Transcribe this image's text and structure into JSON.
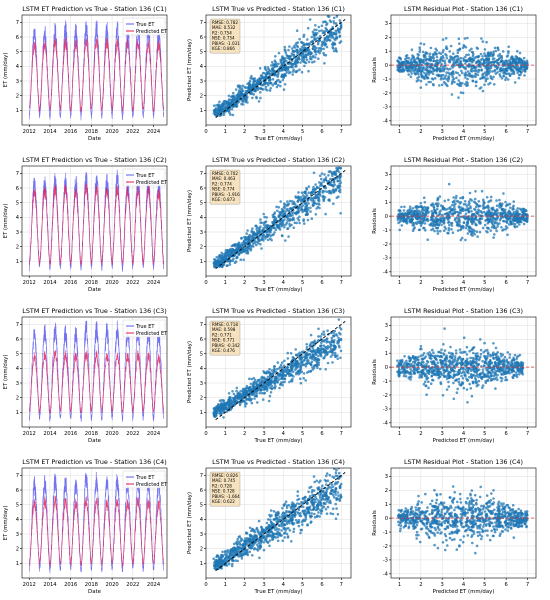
{
  "chart_data": [
    {
      "type": "line",
      "title": "LSTM ET Prediction vs True - Station 136 (C1)",
      "xlabel": "Date",
      "ylabel": "ET (mm/day)",
      "xlim": [
        2011.3,
        2025.3
      ],
      "ylim": [
        0,
        7.5
      ],
      "xticks": [
        "2012",
        "2014",
        "2016",
        "2018",
        "2020",
        "2022",
        "2024"
      ],
      "yticks": [
        "1",
        "2",
        "3",
        "4",
        "5",
        "6",
        "7"
      ],
      "legend": [
        "True ET",
        "Predicted ET"
      ],
      "legend_position": "top-right",
      "series": [
        {
          "name": "True ET",
          "summer_peak": [
            6.1,
            6.2,
            6.3,
            6.4,
            6.5,
            6.3,
            6.6,
            6.6,
            6.4,
            6.5,
            6.3,
            6.5,
            6.4,
            6.2
          ],
          "winter_trough": [
            0.6,
            0.6,
            0.5,
            0.6,
            0.6,
            0.5,
            0.6,
            0.6,
            0.6,
            0.5,
            0.6,
            0.6,
            0.6,
            0.6
          ]
        },
        {
          "name": "Predicted ET",
          "summer_peak": [
            5.3,
            5.4,
            5.5,
            5.6,
            5.6,
            5.5,
            5.7,
            5.7,
            5.6,
            5.6,
            5.5,
            5.6,
            5.5,
            5.4
          ],
          "winter_trough": [
            1.1,
            1.0,
            1.0,
            1.1,
            1.0,
            1.0,
            1.1,
            1.0,
            1.1,
            1.0,
            1.0,
            1.1,
            1.0,
            1.1
          ]
        }
      ]
    },
    {
      "type": "scatter",
      "title": "LSTM True vs Predicted - Station 136 (C1)",
      "xlabel": "True ET (mm/day)",
      "ylabel": "Predicted ET (mm/day)",
      "xlim": [
        0,
        7.5
      ],
      "ylim": [
        0,
        7.5
      ],
      "xticks": [
        "0",
        "1",
        "2",
        "3",
        "4",
        "5",
        "6",
        "7"
      ],
      "yticks": [
        "1",
        "2",
        "3",
        "4",
        "5",
        "6",
        "7"
      ],
      "stats": [
        "RMSE: 0.782",
        "MAE: 0.532",
        "R2: 0.754",
        "NSE: 0.754",
        "PBIAS: -1.031",
        "KGE: 0.866"
      ],
      "model": {
        "slope": 0.9,
        "intercept": 0.35,
        "spread": 0.55,
        "x_range": [
          0.4,
          7.0
        ]
      }
    },
    {
      "type": "scatter",
      "title": "LSTM Residual Plot - Station 136 (C1)",
      "xlabel": "Predicted ET (mm/day)",
      "ylabel": "Residuals",
      "xlim": [
        0.6,
        7.4
      ],
      "ylim": [
        -4.3,
        3.6
      ],
      "xticks": [
        "1",
        "2",
        "3",
        "4",
        "5",
        "6",
        "7"
      ],
      "yticks": [
        "-4",
        "-3",
        "-2",
        "-1",
        "0",
        "1",
        "2",
        "3"
      ],
      "model": {
        "x_range": [
          0.9,
          7.0
        ],
        "spread": 0.55
      }
    },
    {
      "type": "line",
      "title": "LSTM ET Prediction vs True - Station 136 (C2)",
      "xlabel": "Date",
      "ylabel": "ET (mm/day)",
      "xlim": [
        2011.3,
        2025.3
      ],
      "ylim": [
        0,
        7.5
      ],
      "xticks": [
        "2012",
        "2014",
        "2016",
        "2018",
        "2020",
        "2022",
        "2024"
      ],
      "yticks": [
        "1",
        "2",
        "3",
        "4",
        "5",
        "6",
        "7"
      ],
      "legend": [
        "True ET",
        "Predicted ET"
      ],
      "legend_position": "top-right",
      "series": [
        {
          "name": "True ET",
          "summer_peak": [
            6.1,
            6.2,
            6.3,
            6.5,
            6.4,
            6.3,
            6.6,
            6.5,
            6.4,
            6.6,
            6.3,
            6.5,
            6.4,
            6.2
          ],
          "winter_trough": [
            0.5,
            0.6,
            0.5,
            0.6,
            0.6,
            0.5,
            0.6,
            0.5,
            0.6,
            0.5,
            0.6,
            0.6,
            0.6,
            0.5
          ]
        },
        {
          "name": "Predicted ET",
          "summer_peak": [
            5.6,
            5.7,
            5.8,
            5.9,
            5.9,
            5.7,
            6.0,
            5.9,
            5.8,
            5.9,
            5.7,
            5.8,
            5.8,
            5.6
          ],
          "winter_trough": [
            0.9,
            0.9,
            0.8,
            0.9,
            0.9,
            0.8,
            0.9,
            0.9,
            0.9,
            0.8,
            0.9,
            0.9,
            0.9,
            0.9
          ]
        }
      ]
    },
    {
      "type": "scatter",
      "title": "LSTM True vs Predicted - Station 136 (C2)",
      "xlabel": "True ET (mm/day)",
      "ylabel": "Predicted ET (mm/day)",
      "xlim": [
        0,
        7.5
      ],
      "ylim": [
        0,
        7.5
      ],
      "xticks": [
        "0",
        "1",
        "2",
        "3",
        "4",
        "5",
        "6",
        "7"
      ],
      "yticks": [
        "1",
        "2",
        "3",
        "4",
        "5",
        "6",
        "7"
      ],
      "stats": [
        "RMSE: 0.702",
        "MAE: 0.463",
        "R2: 0.774",
        "NSE: 0.774",
        "PBIAS: -1.916",
        "KGE: 0.873"
      ],
      "model": {
        "slope": 0.93,
        "intercept": 0.25,
        "spread": 0.5,
        "x_range": [
          0.4,
          7.0
        ]
      }
    },
    {
      "type": "scatter",
      "title": "LSTM Residual Plot - Station 136 (C2)",
      "xlabel": "Predicted ET (mm/day)",
      "ylabel": "Residuals",
      "xlim": [
        0.6,
        7.4
      ],
      "ylim": [
        -4.3,
        3.6
      ],
      "xticks": [
        "1",
        "2",
        "3",
        "4",
        "5",
        "6",
        "7"
      ],
      "yticks": [
        "-4",
        "-3",
        "-2",
        "-1",
        "0",
        "1",
        "2",
        "3"
      ],
      "model": {
        "x_range": [
          0.9,
          7.0
        ],
        "spread": 0.5
      }
    },
    {
      "type": "line",
      "title": "LSTM ET Prediction vs True - Station 136 (C3)",
      "xlabel": "Date",
      "ylabel": "ET (mm/day)",
      "xlim": [
        2011.3,
        2025.3
      ],
      "ylim": [
        0,
        7.5
      ],
      "xticks": [
        "2012",
        "2014",
        "2016",
        "2018",
        "2020",
        "2022",
        "2024"
      ],
      "yticks": [
        "1",
        "2",
        "3",
        "4",
        "5",
        "6",
        "7"
      ],
      "legend": [
        "True ET",
        "Predicted ET"
      ],
      "legend_position": "top-right",
      "series": [
        {
          "name": "True ET",
          "summer_peak": [
            6.2,
            6.3,
            6.5,
            6.6,
            6.4,
            6.3,
            6.7,
            6.6,
            6.5,
            6.6,
            6.4,
            6.5,
            6.4,
            6.3
          ],
          "winter_trough": [
            0.5,
            0.6,
            0.5,
            0.6,
            0.6,
            0.5,
            0.6,
            0.5,
            0.6,
            0.5,
            0.6,
            0.6,
            0.6,
            0.5
          ]
        },
        {
          "name": "Predicted ET",
          "summer_peak": [
            4.7,
            4.8,
            4.9,
            5.0,
            4.9,
            4.8,
            5.0,
            4.9,
            4.8,
            4.9,
            4.8,
            4.9,
            4.8,
            4.7
          ],
          "winter_trough": [
            1.1,
            1.1,
            1.0,
            1.1,
            1.1,
            1.0,
            1.1,
            1.1,
            1.1,
            1.0,
            1.1,
            1.1,
            1.1,
            1.1
          ]
        }
      ]
    },
    {
      "type": "scatter",
      "title": "LSTM True vs Predicted - Station 136 (C3)",
      "xlabel": "True ET (mm/day)",
      "ylabel": "Predicted ET (mm/day)",
      "xlim": [
        0,
        7.5
      ],
      "ylim": [
        0,
        7.5
      ],
      "xticks": [
        "0",
        "1",
        "2",
        "3",
        "4",
        "5",
        "6",
        "7"
      ],
      "yticks": [
        "1",
        "2",
        "3",
        "4",
        "5",
        "6",
        "7"
      ],
      "stats": [
        "RMSE: 0.718",
        "MAE: 0.598",
        "R2: 0.771",
        "NSE: 0.771",
        "PBIAS: -0.342",
        "KGE: 0.476"
      ],
      "model": {
        "slope": 0.75,
        "intercept": 0.7,
        "spread": 0.45,
        "x_range": [
          0.4,
          7.0
        ]
      }
    },
    {
      "type": "scatter",
      "title": "LSTM Residual Plot - Station 136 (C3)",
      "xlabel": "Predicted ET (mm/day)",
      "ylabel": "Residuals",
      "xlim": [
        0.6,
        7.4
      ],
      "ylim": [
        -4.3,
        3.6
      ],
      "xticks": [
        "1",
        "2",
        "3",
        "4",
        "5",
        "6",
        "7"
      ],
      "yticks": [
        "-4",
        "-3",
        "-2",
        "-1",
        "0",
        "1",
        "2",
        "3"
      ],
      "model": {
        "x_range": [
          0.9,
          6.8
        ],
        "spread": 0.55
      }
    },
    {
      "type": "line",
      "title": "LSTM ET Prediction vs True - Station 136 (C4)",
      "xlabel": "Date",
      "ylabel": "ET (mm/day)",
      "xlim": [
        2011.3,
        2025.3
      ],
      "ylim": [
        0,
        7.5
      ],
      "xticks": [
        "2012",
        "2014",
        "2016",
        "2018",
        "2020",
        "2022",
        "2024"
      ],
      "yticks": [
        "1",
        "2",
        "3",
        "4",
        "5",
        "6",
        "7"
      ],
      "legend": [
        "True ET",
        "Predicted ET"
      ],
      "legend_position": "top-right",
      "series": [
        {
          "name": "True ET",
          "summer_peak": [
            6.2,
            6.3,
            6.4,
            6.6,
            6.5,
            6.3,
            6.7,
            6.6,
            6.5,
            6.6,
            6.4,
            6.5,
            6.4,
            6.3
          ],
          "winter_trough": [
            0.5,
            0.6,
            0.5,
            0.6,
            0.6,
            0.5,
            0.6,
            0.5,
            0.6,
            0.5,
            0.6,
            0.6,
            0.6,
            0.5
          ]
        },
        {
          "name": "Predicted ET",
          "summer_peak": [
            5.0,
            5.1,
            5.2,
            5.3,
            5.2,
            5.1,
            5.3,
            5.2,
            5.1,
            5.2,
            5.1,
            5.2,
            5.1,
            5.0
          ],
          "winter_trough": [
            1.0,
            1.0,
            0.9,
            1.0,
            1.0,
            0.9,
            1.0,
            1.0,
            1.0,
            0.9,
            1.0,
            1.0,
            1.0,
            1.0
          ]
        }
      ]
    },
    {
      "type": "scatter",
      "title": "LSTM True vs Predicted - Station 136 (C4)",
      "xlabel": "True ET (mm/day)",
      "ylabel": "Predicted ET (mm/day)",
      "xlim": [
        0,
        7.5
      ],
      "ylim": [
        0,
        7.5
      ],
      "xticks": [
        "0",
        "1",
        "2",
        "3",
        "4",
        "5",
        "6",
        "7"
      ],
      "yticks": [
        "1",
        "2",
        "3",
        "4",
        "5",
        "6",
        "7"
      ],
      "stats": [
        "RMSE: 0.826",
        "MAE: 0.745",
        "R2: 0.728",
        "NSE: 0.728",
        "PBIAS: -1.664",
        "KGE: 0.622"
      ],
      "model": {
        "slope": 0.85,
        "intercept": 0.45,
        "spread": 0.55,
        "x_range": [
          0.4,
          7.0
        ]
      }
    },
    {
      "type": "scatter",
      "title": "LSTM Residual Plot - Station 136 (C4)",
      "xlabel": "Predicted ET (mm/day)",
      "ylabel": "Residuals",
      "xlim": [
        0.6,
        7.4
      ],
      "ylim": [
        -4.3,
        3.6
      ],
      "xticks": [
        "1",
        "2",
        "3",
        "4",
        "5",
        "6",
        "7"
      ],
      "yticks": [
        "-4",
        "-3",
        "-2",
        "-1",
        "0",
        "1",
        "2",
        "3"
      ],
      "model": {
        "x_range": [
          0.9,
          7.0
        ],
        "spread": 0.6
      }
    }
  ],
  "colors": {
    "true_et": "#5b5bf0",
    "predicted_et": "#e8174f",
    "scatter": "#1f77b4",
    "identity_line": "#000000",
    "zero_line": "#e03030",
    "stats_box_bg": "#f5deb3",
    "grid": "#dddddd"
  }
}
